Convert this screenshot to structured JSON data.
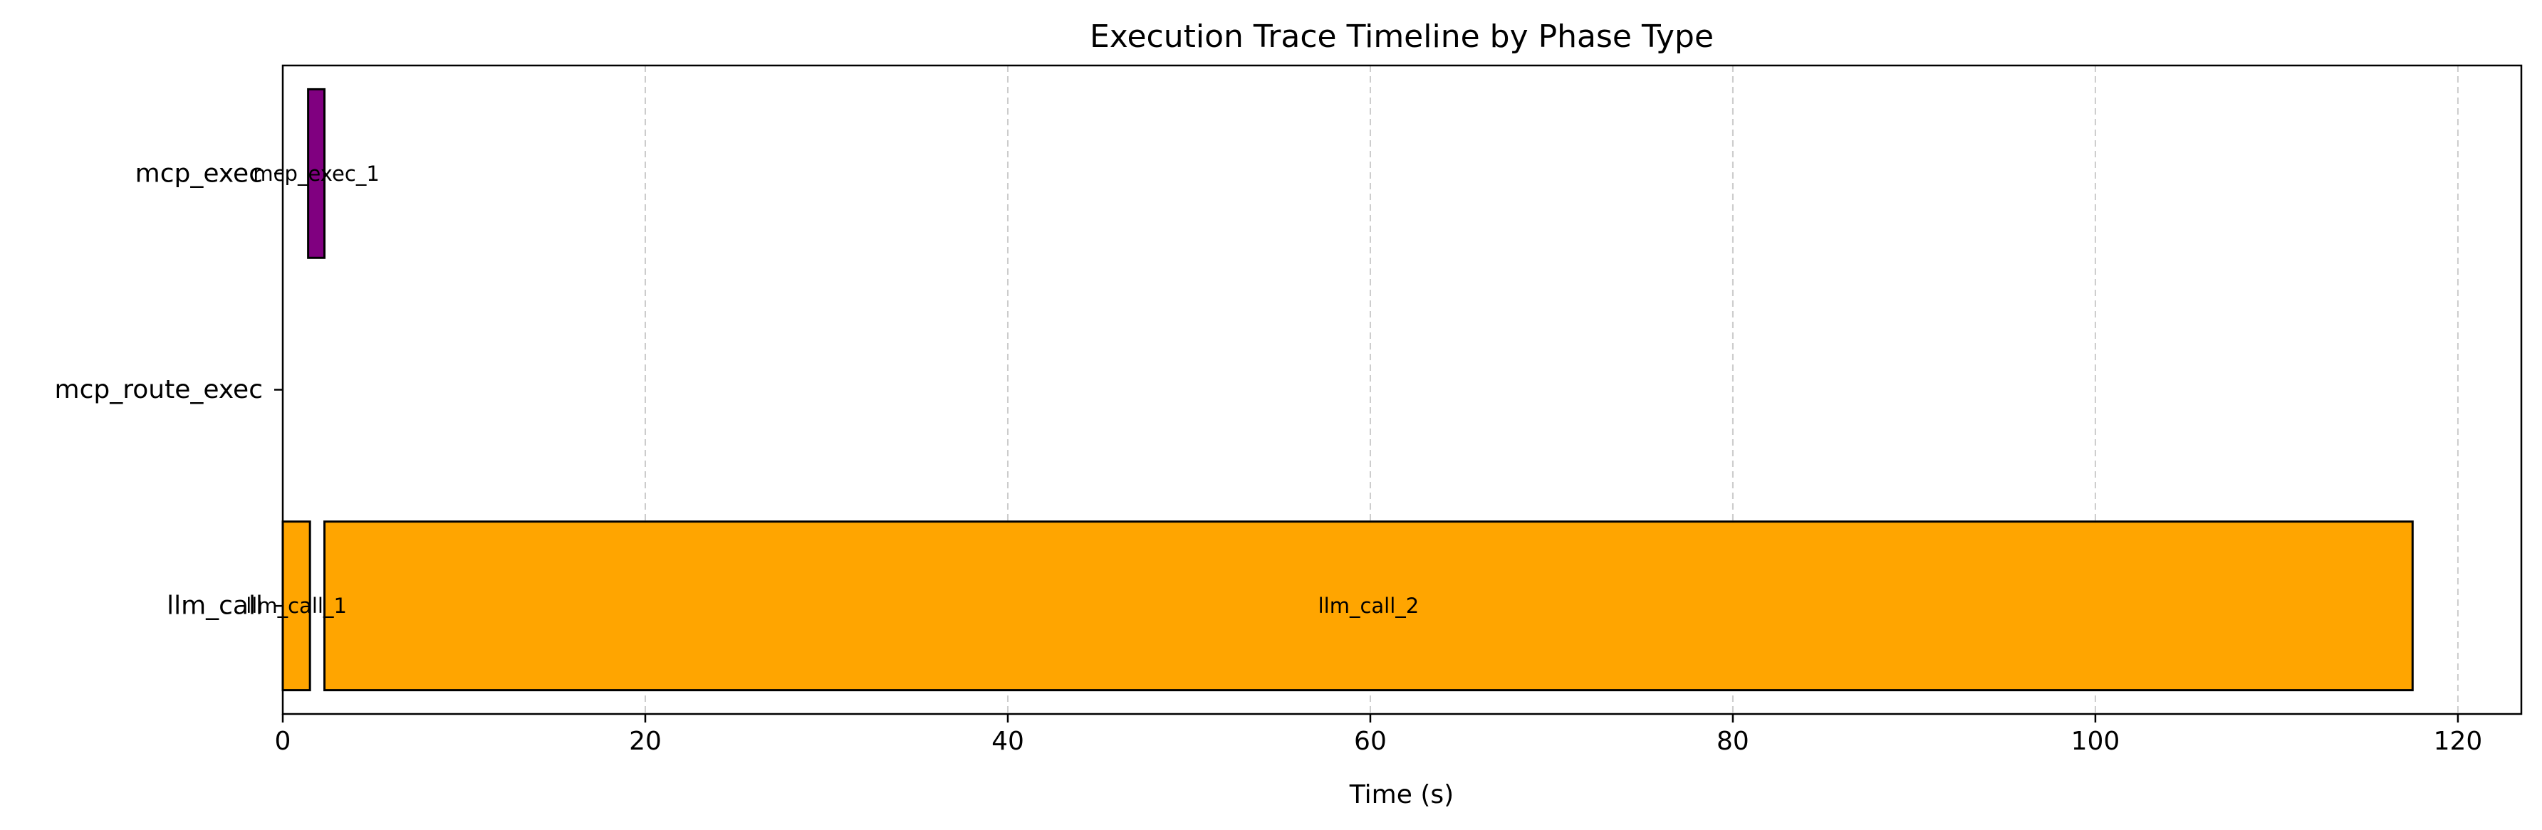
{
  "chart_data": {
    "type": "bar",
    "orientation": "horizontal",
    "title": "Execution Trace Timeline by Phase Type",
    "xlabel": "Time (s)",
    "ylabel": "",
    "xlim": [
      0,
      123.5
    ],
    "xticks": [
      0,
      20,
      40,
      60,
      80,
      100,
      120
    ],
    "categories": [
      "mcp_exec",
      "mcp_route_exec",
      "llm_call"
    ],
    "grid": {
      "x": true,
      "y": false,
      "style": "dashed"
    },
    "legend": "none",
    "colors": {
      "llm_call": "#FFA500",
      "mcp_exec": "#800080",
      "edge": "#000000",
      "grid": "#cccccc"
    },
    "bars": [
      {
        "label": "llm_call_1",
        "category": "llm_call",
        "start": 0.0,
        "end": 1.5
      },
      {
        "label": "mcp_exec_1",
        "category": "mcp_exec",
        "start": 1.4,
        "end": 2.3
      },
      {
        "label": "llm_call_2",
        "category": "llm_call",
        "start": 2.3,
        "end": 117.5
      }
    ]
  }
}
